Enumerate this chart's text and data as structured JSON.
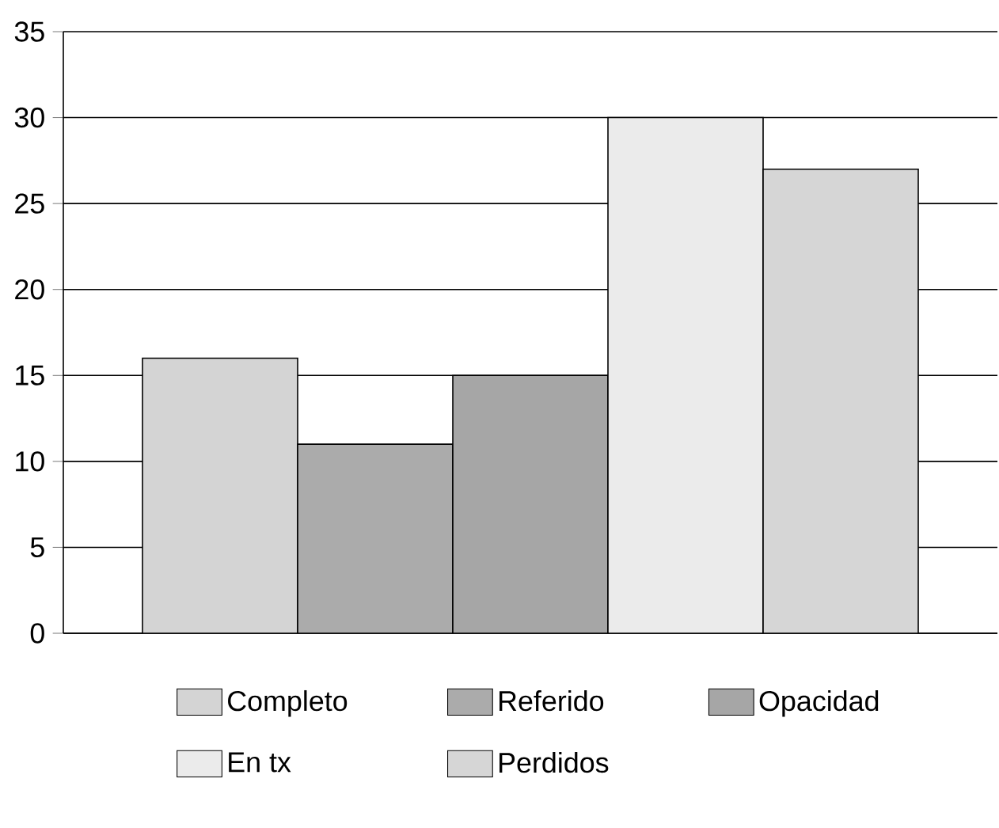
{
  "chart_data": {
    "type": "bar",
    "categories": [
      null
    ],
    "ylim": [
      0,
      35
    ],
    "yticks": [
      0,
      5,
      10,
      15,
      20,
      25,
      30,
      35
    ],
    "grid": "y",
    "legend": "bottom",
    "series": [
      {
        "name": "Completo",
        "color": "#d4d4d4",
        "values": [
          16
        ]
      },
      {
        "name": "Referido",
        "color": "#ababab",
        "values": [
          11
        ]
      },
      {
        "name": "Opacidad",
        "color": "#a6a6a6",
        "values": [
          15
        ]
      },
      {
        "name": "En tx",
        "color": "#ebebeb",
        "values": [
          30
        ]
      },
      {
        "name": "Perdidos",
        "color": "#d6d6d6",
        "values": [
          27
        ]
      }
    ]
  }
}
